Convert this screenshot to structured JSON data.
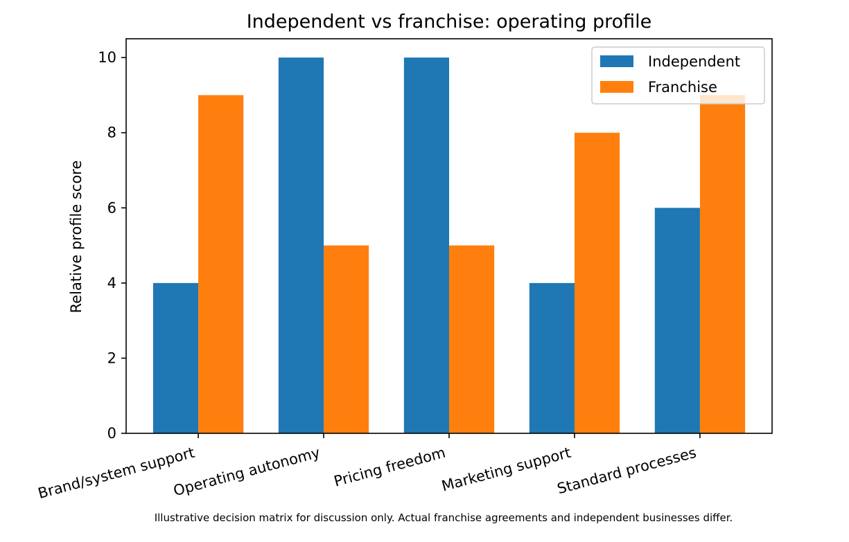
{
  "chart_data": {
    "type": "bar",
    "title": "Independent vs franchise: operating profile",
    "xlabel": "",
    "ylabel": "Relative profile score",
    "categories": [
      "Brand/system support",
      "Operating autonomy",
      "Pricing freedom",
      "Marketing support",
      "Standard processes"
    ],
    "series": [
      {
        "name": "Independent",
        "color": "#1f77b4",
        "values": [
          4,
          10,
          10,
          4,
          6
        ]
      },
      {
        "name": "Franchise",
        "color": "#ff7f0e",
        "values": [
          9,
          5,
          5,
          8,
          9
        ]
      }
    ],
    "ylim": [
      0,
      10.5
    ],
    "yticks": [
      0,
      2,
      4,
      6,
      8,
      10
    ],
    "grid": false,
    "legend_position": "top-right",
    "footnote": "Illustrative decision matrix for discussion only. Actual franchise agreements and independent businesses differ."
  }
}
